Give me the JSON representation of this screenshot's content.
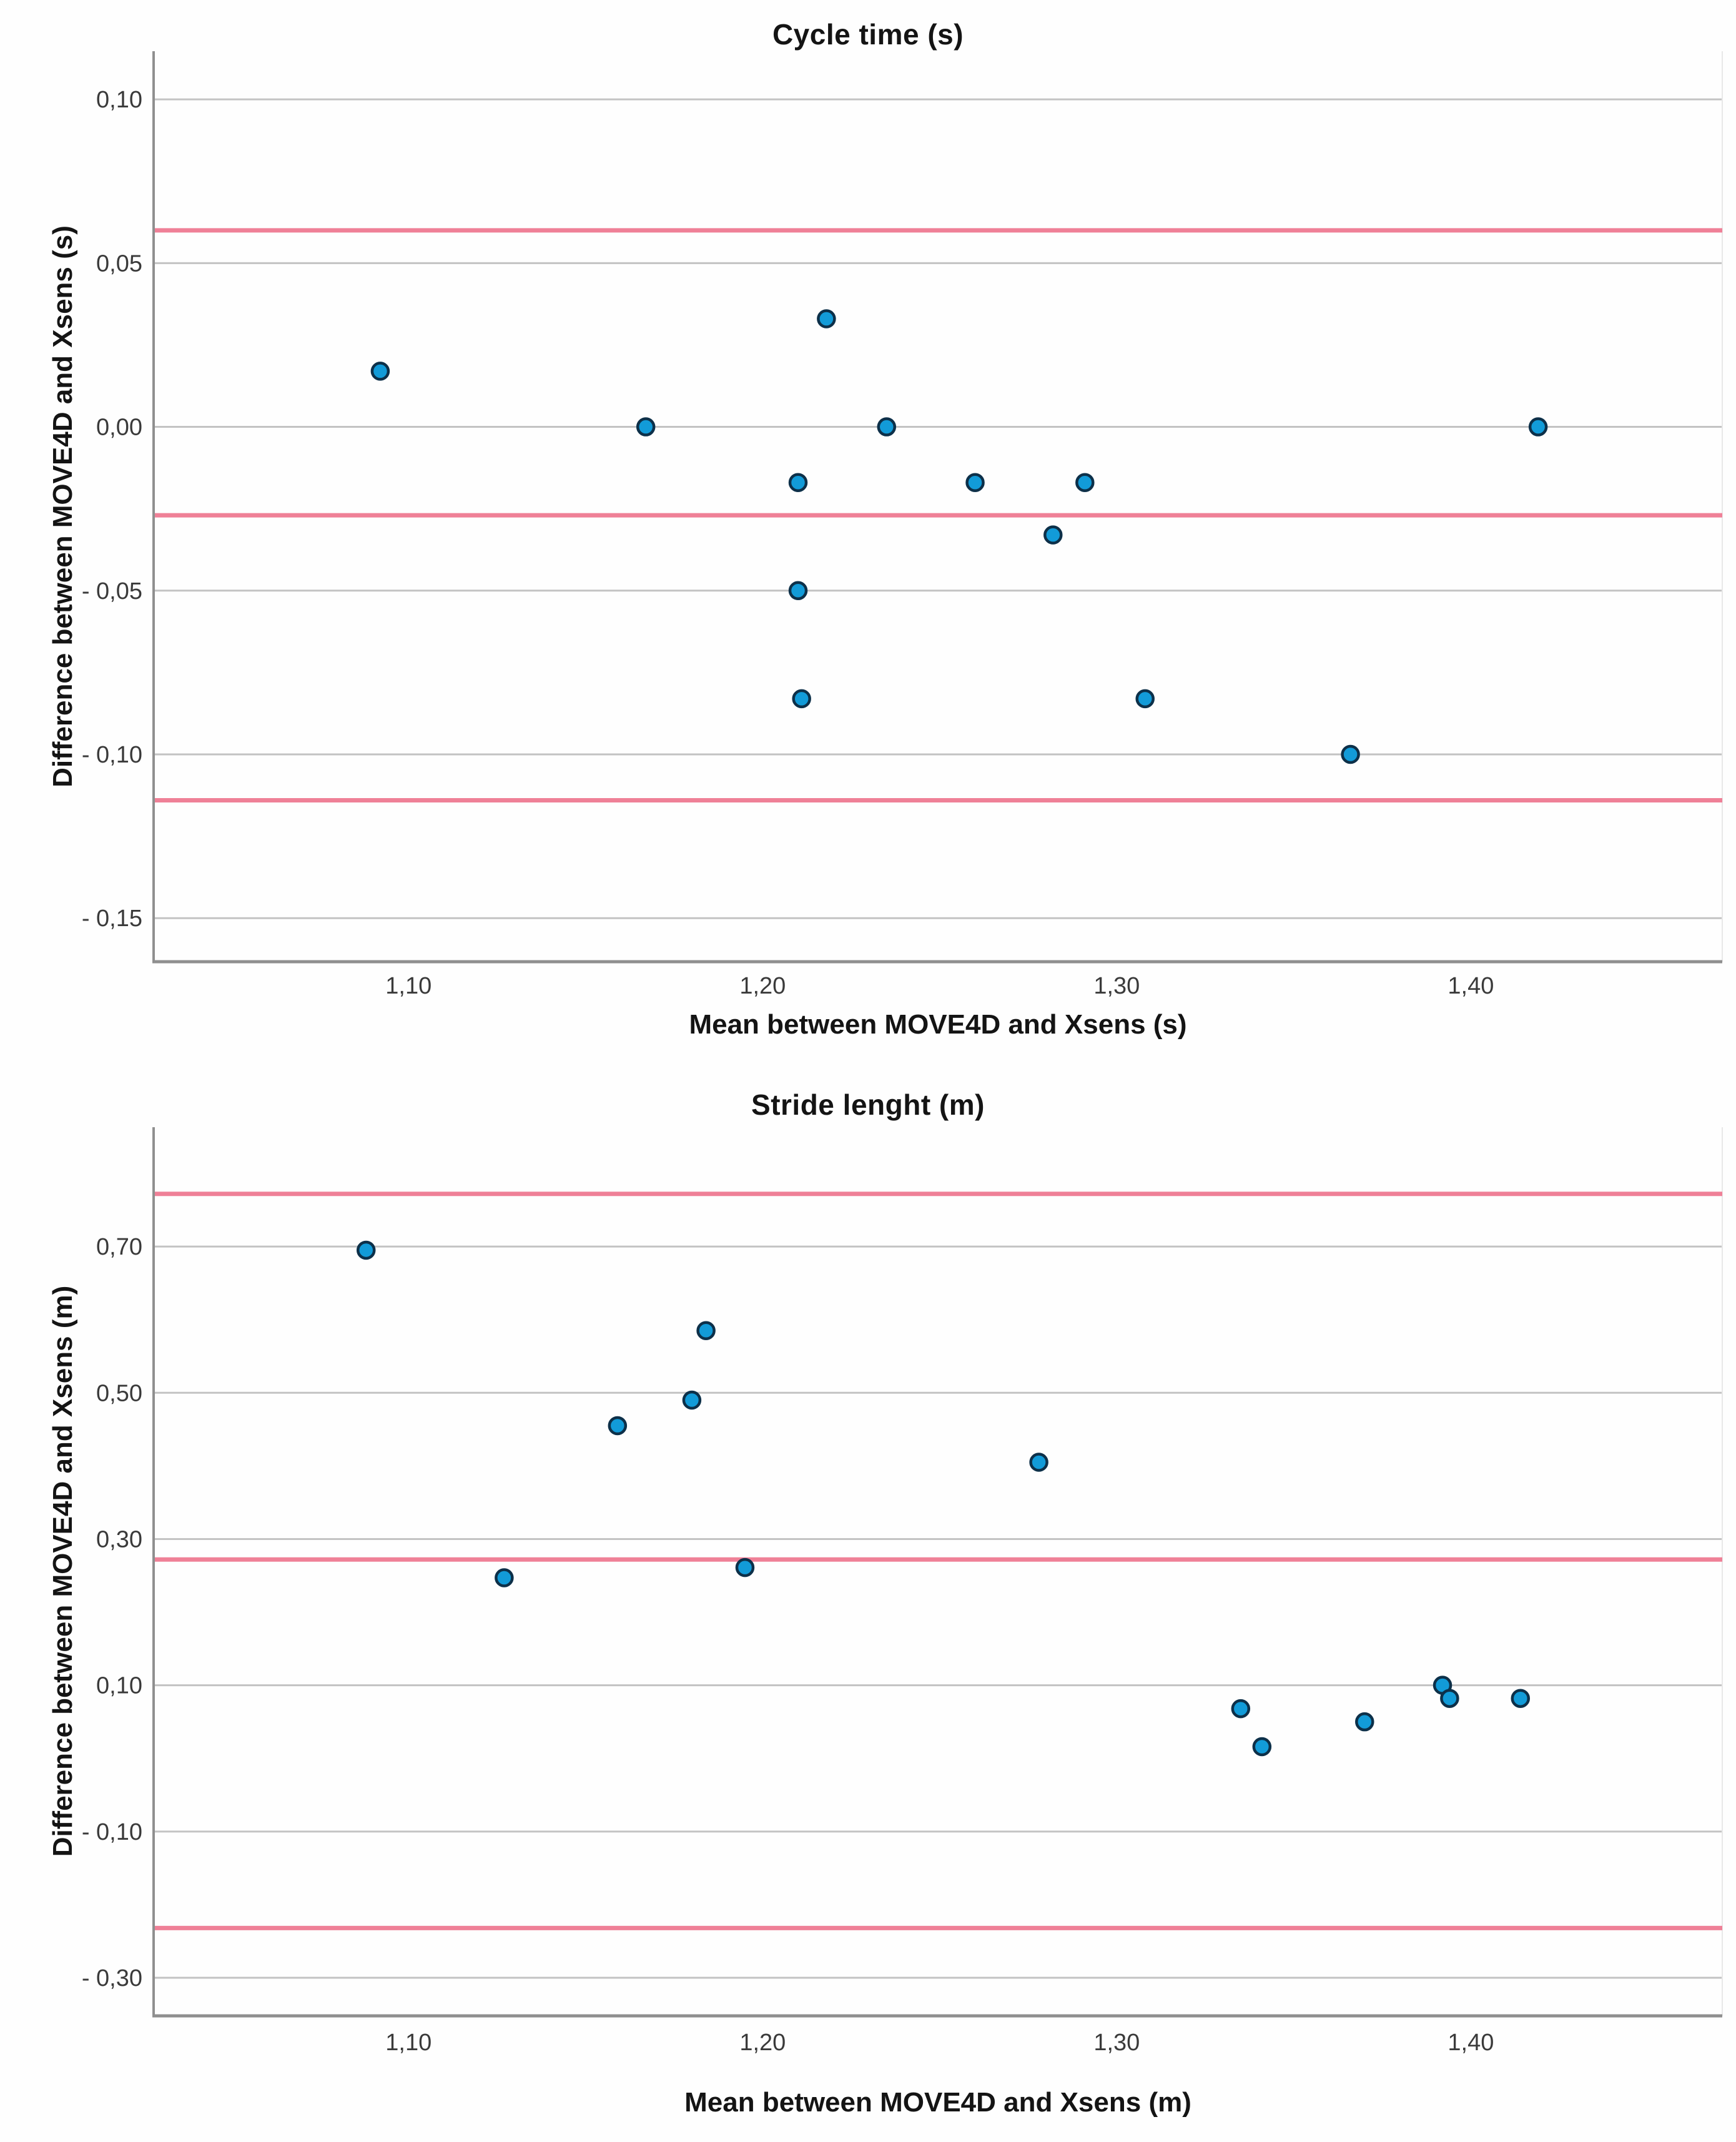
{
  "figure": {
    "description": "Two Bland-Altman agreement plots comparing MOVE4D and Xsens systems"
  },
  "colors": {
    "marker_fill": "#129BD8",
    "marker_stroke": "#0D3049",
    "reference_line": "#EF8097",
    "gridline": "#C3C3C3",
    "axis_line": "#8F8F8F",
    "plot_right_border": "#E8E8E8",
    "tick_text": "#3A3A3A",
    "label_text": "#141414",
    "background": "#FEFEFE"
  },
  "chart_data": [
    {
      "type": "scatter",
      "title": "Cycle time (s)",
      "xlabel": "Mean between MOVE4D and Xsens (s)",
      "ylabel": "Difference between MOVE4D and Xsens (s)",
      "x_range": [
        1.028,
        1.471
      ],
      "y_range": [
        -0.1633,
        0.1147
      ],
      "grid": "horizontal-only",
      "legend": "none",
      "x_ticks": [
        {
          "v": 1.1,
          "label": "1,10"
        },
        {
          "v": 1.2,
          "label": "1,20"
        },
        {
          "v": 1.3,
          "label": "1,30"
        },
        {
          "v": 1.4,
          "label": "1,40"
        }
      ],
      "y_ticks": [
        {
          "v": 0.1,
          "label": "0,10"
        },
        {
          "v": 0.05,
          "label": "0,05"
        },
        {
          "v": 0.0,
          "label": "0,00"
        },
        {
          "v": -0.05,
          "label": "- 0,05"
        },
        {
          "v": -0.1,
          "label": "- 0,10"
        },
        {
          "v": -0.15,
          "label": "- 0,15"
        }
      ],
      "reference_lines": [
        {
          "name": "upper-limit-of-agreement",
          "value": 0.06
        },
        {
          "name": "mean-difference",
          "value": -0.027
        },
        {
          "name": "lower-limit-of-agreement",
          "value": -0.114
        }
      ],
      "points": [
        [
          1.092,
          0.017
        ],
        [
          1.167,
          0.0
        ],
        [
          1.218,
          0.033
        ],
        [
          1.235,
          0.0
        ],
        [
          1.21,
          -0.017
        ],
        [
          1.26,
          -0.017
        ],
        [
          1.291,
          -0.017
        ],
        [
          1.282,
          -0.033
        ],
        [
          1.21,
          -0.05
        ],
        [
          1.211,
          -0.083
        ],
        [
          1.308,
          -0.083
        ],
        [
          1.366,
          -0.1
        ],
        [
          1.419,
          0.0
        ]
      ]
    },
    {
      "type": "scatter",
      "title": "Stride lenght (m)",
      "xlabel": "Mean between MOVE4D and Xsens (m)",
      "ylabel": "Difference between MOVE4D and Xsens (m)",
      "x_range": [
        1.028,
        1.471
      ],
      "y_range": [
        -0.3521,
        0.8632
      ],
      "grid": "horizontal-only",
      "legend": "none",
      "x_ticks": [
        {
          "v": 1.1,
          "label": "1,10"
        },
        {
          "v": 1.2,
          "label": "1,20"
        },
        {
          "v": 1.3,
          "label": "1,30"
        },
        {
          "v": 1.4,
          "label": "1,40"
        }
      ],
      "y_ticks": [
        {
          "v": 0.7,
          "label": "0,70"
        },
        {
          "v": 0.5,
          "label": "0,50"
        },
        {
          "v": 0.3,
          "label": "0,30"
        },
        {
          "v": 0.1,
          "label": "0,10"
        },
        {
          "v": -0.1,
          "label": "- 0,10"
        },
        {
          "v": -0.3,
          "label": "- 0,30"
        }
      ],
      "reference_lines": [
        {
          "name": "upper-limit-of-agreement",
          "value": 0.772
        },
        {
          "name": "mean-difference",
          "value": 0.272
        },
        {
          "name": "lower-limit-of-agreement",
          "value": -0.232
        }
      ],
      "points": [
        [
          1.088,
          0.695
        ],
        [
          1.184,
          0.585
        ],
        [
          1.18,
          0.49
        ],
        [
          1.159,
          0.455
        ],
        [
          1.278,
          0.405
        ],
        [
          1.127,
          0.247
        ],
        [
          1.195,
          0.261
        ],
        [
          1.335,
          0.068
        ],
        [
          1.341,
          0.016
        ],
        [
          1.37,
          0.05
        ],
        [
          1.392,
          0.1
        ],
        [
          1.394,
          0.082
        ],
        [
          1.414,
          0.082
        ]
      ]
    }
  ]
}
